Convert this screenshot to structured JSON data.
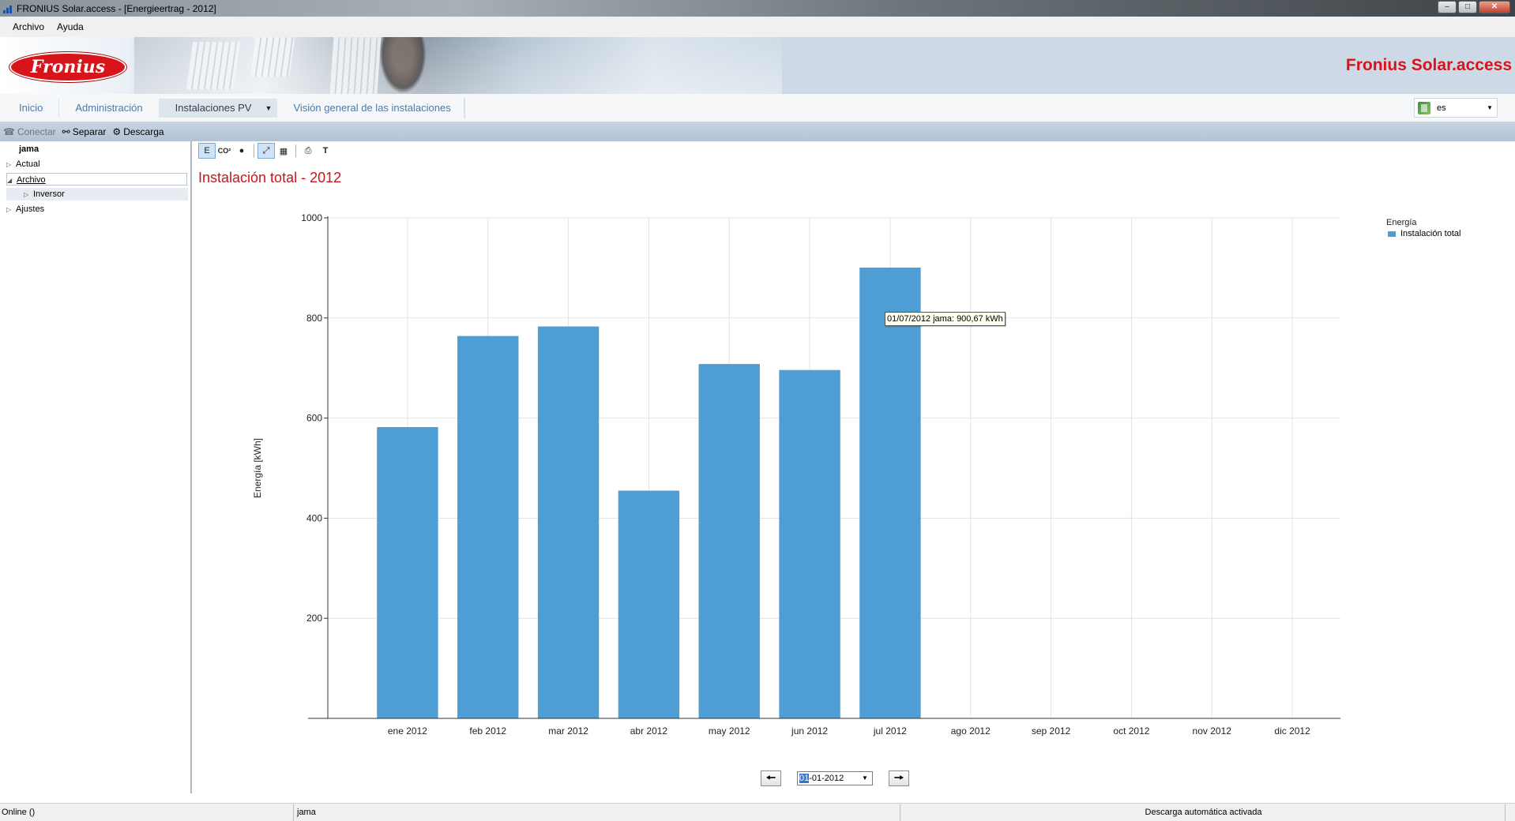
{
  "window": {
    "title": "FRONIUS Solar.access - [Energieertrag - 2012]",
    "controls": [
      "minimize",
      "maximize",
      "close"
    ]
  },
  "menubar": {
    "items": [
      "Archivo",
      "Ayuda"
    ]
  },
  "banner": {
    "logo_text": "Fronius",
    "app_title": "Fronius Solar.access"
  },
  "navtabs": {
    "tabs": [
      "Inicio",
      "Administración",
      "Instalaciones PV",
      "Visión general de las instalaciones"
    ],
    "active": "Instalaciones PV",
    "language": "es"
  },
  "toolbar": {
    "connect": "Conectar",
    "disconnect": "Separar",
    "download": "Descarga"
  },
  "tree": {
    "root": "jama",
    "nodes": [
      "Actual",
      "Archivo",
      "Inversor",
      "Ajustes"
    ]
  },
  "chart_toolbar": {
    "energy": "E",
    "co2": "CO²",
    "text": "T"
  },
  "chart_data": {
    "type": "bar",
    "title": "Instalación total - 2012",
    "ylabel": "Energía [kWh]",
    "xlabel": "",
    "ylim": [
      0,
      1000
    ],
    "yticks": [
      200,
      400,
      600,
      800,
      1000
    ],
    "categories": [
      "ene 2012",
      "feb 2012",
      "mar 2012",
      "abr 2012",
      "may 2012",
      "jun 2012",
      "jul 2012",
      "ago 2012",
      "sep 2012",
      "oct 2012",
      "nov 2012",
      "dic 2012"
    ],
    "series": [
      {
        "name": "Instalación total",
        "color": "#4e9dd4",
        "values": [
          582,
          764,
          783,
          455,
          708,
          696,
          900.67,
          0,
          0,
          0,
          0,
          0
        ]
      }
    ],
    "legend": {
      "title": "Energía",
      "placement": "top-right"
    },
    "grid": true,
    "tooltip": "01/07/2012 jama: 900,67 kWh"
  },
  "date_nav": {
    "day": "01",
    "rest": "-01-2012"
  },
  "statusbar": {
    "connection": "Online ()",
    "system": "jama",
    "message": "Descarga automática activada"
  }
}
